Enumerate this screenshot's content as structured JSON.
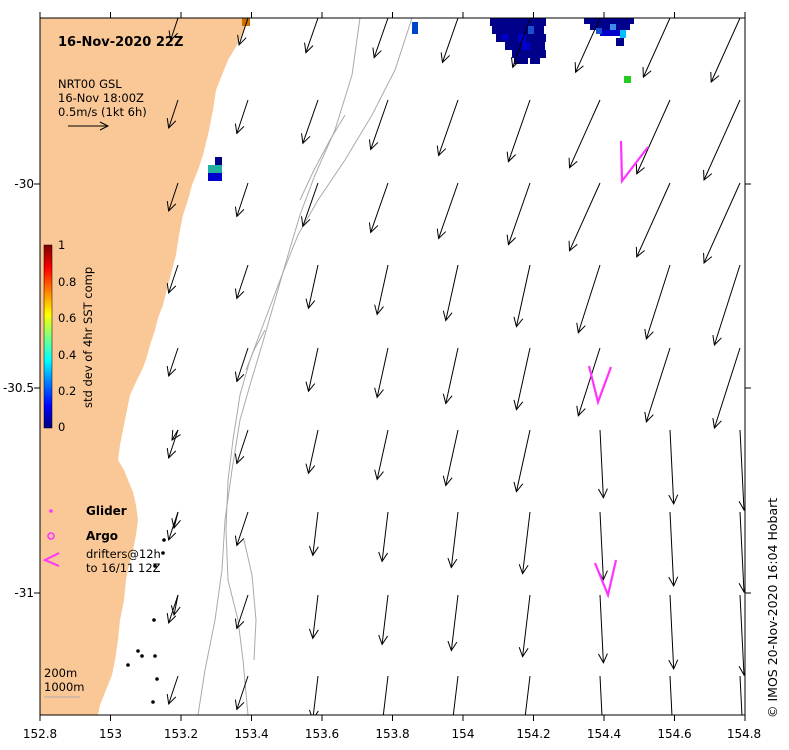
{
  "title": "16-Nov-2020 22Z",
  "product": {
    "line1": "NRT00 GSL",
    "line2": "16-Nov 18:00Z",
    "line3": "0.5m/s (1kt 6h)"
  },
  "colorbar": {
    "label": "std dev of 4hr SST comp",
    "ticks": [
      "1",
      "0.8",
      "0.6",
      "0.4",
      "0.2",
      "0"
    ],
    "colors": [
      "#00007f",
      "#0000ff",
      "#007fff",
      "#00ffff",
      "#7fff7f",
      "#ffff00",
      "#ff7f00",
      "#ff0000",
      "#7f0000"
    ]
  },
  "legend": {
    "glider": "Glider",
    "argo": "Argo",
    "drifters_line1": "drifters@12h",
    "drifters_line2": "to 16/11 12Z",
    "marker_color": "#ff33ff"
  },
  "depth_legend": {
    "line1": "200m",
    "line2": "1000m"
  },
  "credit": "© IMOS 20-Nov-2020 16:04 Hobart",
  "axes": {
    "x_ticks": [
      "152.8",
      "153",
      "153.2",
      "153.4",
      "153.6",
      "153.8",
      "154",
      "154.2",
      "154.4",
      "154.6",
      "154.8"
    ],
    "y_ticks": [
      "-30",
      "-30.5",
      "-31"
    ],
    "x_range": [
      152.8,
      154.8
    ],
    "y_range": [
      -31.3,
      -29.6
    ]
  },
  "colors": {
    "land": "#fac896",
    "arrow": "#000000",
    "bathymetry": "#aaaaaa",
    "drifter": "#ff33ff"
  }
}
